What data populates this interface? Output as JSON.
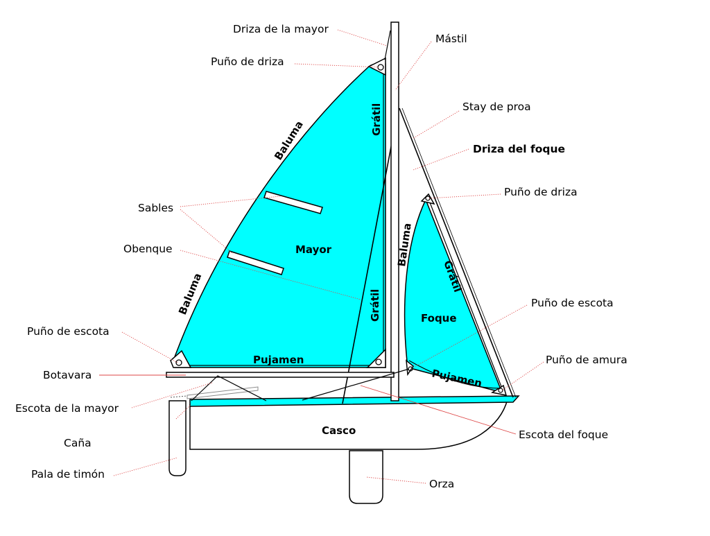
{
  "colors": {
    "sail": "#00ffff",
    "outline": "#000000",
    "hull": "#ffffff",
    "leader": "#dd4444"
  },
  "labels": {
    "driza_mayor": "Driza de la mayor",
    "puno_driza_main": "Puño de driza",
    "mastil": "Mástil",
    "stay_proa": "Stay de proa",
    "driza_foque": "Driza del foque",
    "puno_driza_jib": "Puño de driza",
    "sables": "Sables",
    "obenque": "Obenque",
    "puno_escota_jib": "Puño de escota",
    "puno_escota_main": "Puño de escota",
    "puno_amura": "Puño de amura",
    "botavara": "Botavara",
    "escota_mayor": "Escota de la mayor",
    "escota_foque": "Escota del foque",
    "cana": "Caña",
    "pala_timon": "Pala de timón",
    "orza": "Orza"
  },
  "parts": {
    "mayor": "Mayor",
    "foque": "Foque",
    "casco": "Casco",
    "pujamen_main": "Pujamen",
    "pujamen_jib": "Pujamen",
    "gratil_main_top": "Grátil",
    "gratil_main_bottom": "Grátil",
    "gratil_jib": "Grátil",
    "baluma_main_top": "Baluma",
    "baluma_main_bottom": "Baluma",
    "baluma_jib": "Baluma"
  }
}
